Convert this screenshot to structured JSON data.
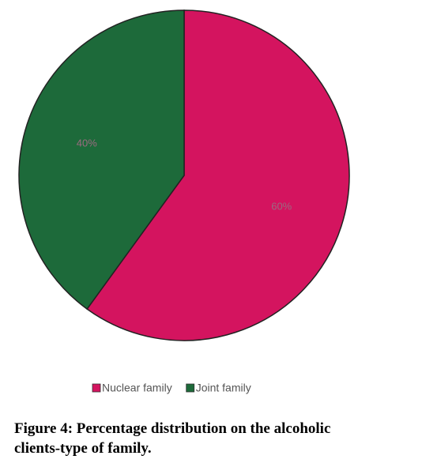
{
  "chart_data": {
    "type": "pie",
    "categories": [
      "Nuclear family",
      "Joint family"
    ],
    "values": [
      60,
      40
    ],
    "value_labels": [
      "60%",
      "40%"
    ],
    "colors": [
      "#d4145f",
      "#1d6a3a"
    ],
    "caption": "Figure 4: Percentage distribution on the alcoholic clients-type of family."
  }
}
